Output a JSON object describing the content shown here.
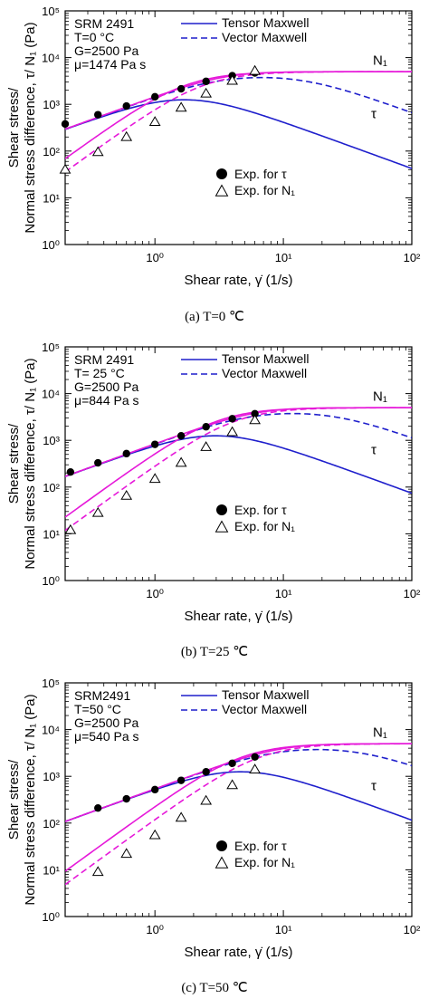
{
  "common": {
    "xlabel_prefix": "Shear rate, ",
    "xlabel_symbol": "γ̇",
    "xlabel_suffix": " (1/s)",
    "ylabel_line1": "Shear stress/",
    "ylabel_line2": "Normal stress difference, τ/ N₁ (Pa)",
    "x_tick_labels": [
      "10⁰",
      "10¹",
      "10²"
    ],
    "y_tick_labels": [
      "10⁰",
      "10¹",
      "10²",
      "10³",
      "10⁴",
      "10⁵"
    ],
    "legend_tensor": "Tensor Maxwell",
    "legend_vector": "Vector Maxwell",
    "legend_exp_tau": "Exp. for  τ",
    "legend_exp_n1": "Exp. for N₁",
    "label_n1": "N₁",
    "label_tau": "τ",
    "colors": {
      "tensor": "#1f1fcc",
      "vector": "#1f1fcc",
      "magenta": "#e619d9",
      "axis": "#000000"
    }
  },
  "panels": [
    {
      "caption": "(a) T=0  ℃",
      "info": [
        "SRM 2491",
        "T=0 °C",
        "G=2500 Pa",
        "μ=1474 Pa s"
      ],
      "chart_data": {
        "type": "line",
        "x_scale": "log",
        "y_scale": "log",
        "xlim": [
          0.2,
          100
        ],
        "ylim": [
          1,
          100000
        ],
        "G": 2500,
        "mu": 1474,
        "exp_tau": {
          "x": [
            0.2,
            0.36,
            0.6,
            1.0,
            1.6,
            2.5,
            4.0,
            6.0
          ],
          "y": [
            380,
            600,
            920,
            1450,
            2150,
            3100,
            4100,
            4700
          ]
        },
        "exp_n1": {
          "x": [
            0.2,
            0.36,
            0.6,
            1.0,
            1.6,
            2.5,
            4.0,
            6.0
          ],
          "y": [
            40,
            95,
            200,
            420,
            850,
            1700,
            3200,
            5200
          ]
        }
      }
    },
    {
      "caption": "(b) T=25  ℃",
      "info": [
        "SRM 2491",
        "T= 25 °C",
        "G=2500 Pa",
        "μ=844 Pa s"
      ],
      "chart_data": {
        "type": "line",
        "x_scale": "log",
        "y_scale": "log",
        "xlim": [
          0.2,
          100
        ],
        "ylim": [
          1,
          100000
        ],
        "G": 2500,
        "mu": 844,
        "exp_tau": {
          "x": [
            0.22,
            0.36,
            0.6,
            1.0,
            1.6,
            2.5,
            4.0,
            6.0
          ],
          "y": [
            210,
            330,
            520,
            820,
            1250,
            1950,
            2900,
            3700
          ]
        },
        "exp_n1": {
          "x": [
            0.22,
            0.36,
            0.6,
            1.0,
            1.6,
            2.5,
            4.0,
            6.0
          ],
          "y": [
            12,
            28,
            65,
            150,
            330,
            720,
            1500,
            2700
          ]
        }
      }
    },
    {
      "caption": "(c) T=50  ℃",
      "info": [
        "SRM2491",
        "T=50 °C",
        "G=2500 Pa",
        "μ=540 Pa s"
      ],
      "chart_data": {
        "type": "line",
        "x_scale": "log",
        "y_scale": "log",
        "xlim": [
          0.2,
          100
        ],
        "ylim": [
          1,
          100000
        ],
        "G": 2500,
        "mu": 540,
        "exp_tau": {
          "x": [
            0.36,
            0.6,
            1.0,
            1.6,
            2.5,
            4.0,
            6.0
          ],
          "y": [
            210,
            330,
            520,
            820,
            1250,
            1900,
            2600
          ]
        },
        "exp_n1": {
          "x": [
            0.36,
            0.6,
            1.0,
            1.6,
            2.5,
            4.0,
            6.0
          ],
          "y": [
            9,
            22,
            55,
            130,
            300,
            650,
            1400
          ]
        }
      }
    }
  ]
}
